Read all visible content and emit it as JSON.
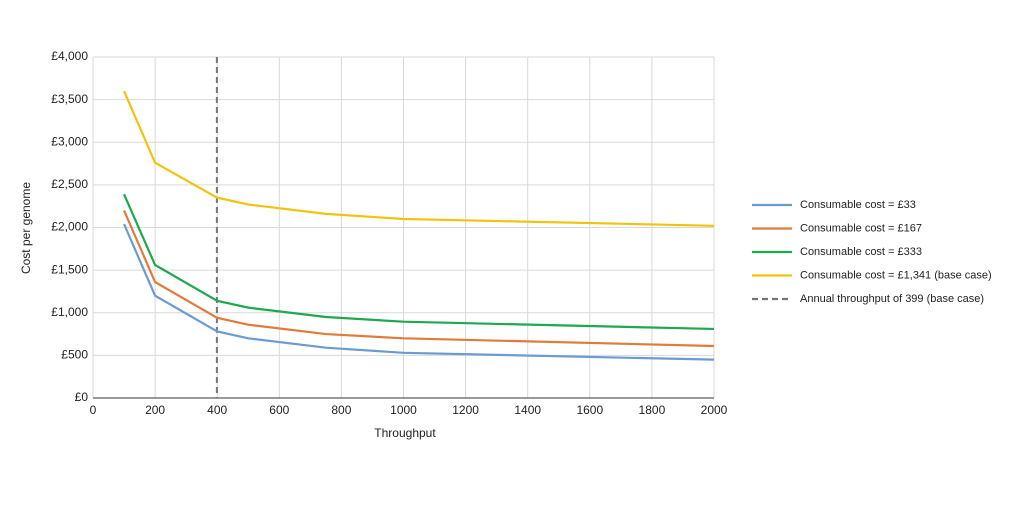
{
  "chart_data": {
    "type": "line",
    "x_label": "Throughput",
    "y_label": "Cost per genome",
    "x": [
      100,
      200,
      400,
      500,
      750,
      1000,
      2000
    ],
    "series": [
      {
        "name": "Consumable cost = £33",
        "color": "#6b9bd1",
        "values": [
          2040,
          1200,
          780,
          700,
          590,
          530,
          450
        ]
      },
      {
        "name": "Consumable cost = £167",
        "color": "#e07b3c",
        "values": [
          2200,
          1360,
          940,
          860,
          750,
          700,
          610
        ]
      },
      {
        "name": "Consumable cost = £333",
        "color": "#1fa84f",
        "values": [
          2390,
          1560,
          1140,
          1060,
          950,
          895,
          810
        ]
      },
      {
        "name": "Consumable cost = £1,341 (base case)",
        "color": "#f2c20f",
        "values": [
          3600,
          2760,
          2350,
          2270,
          2160,
          2100,
          2020
        ]
      }
    ],
    "reference_line": {
      "name": "Annual throughput of 399 (base case)",
      "x": 399,
      "color": "#777777",
      "dashed": true
    },
    "xlim": [
      0,
      2000
    ],
    "xticks": [
      0,
      200,
      400,
      600,
      800,
      1000,
      1200,
      1400,
      1600,
      1800,
      2000
    ],
    "ylim": [
      0,
      4000
    ],
    "yticks": [
      {
        "value": 0,
        "label": "£0"
      },
      {
        "value": 500,
        "label": "£500"
      },
      {
        "value": 1000,
        "label": "£1,000"
      },
      {
        "value": 1500,
        "label": "£1,500"
      },
      {
        "value": 2000,
        "label": "£2,000"
      },
      {
        "value": 2500,
        "label": "£2,500"
      },
      {
        "value": 3000,
        "label": "£3,000"
      },
      {
        "value": 3500,
        "label": "£3,500"
      },
      {
        "value": 4000,
        "label": "£4,000"
      }
    ],
    "grid": true
  }
}
